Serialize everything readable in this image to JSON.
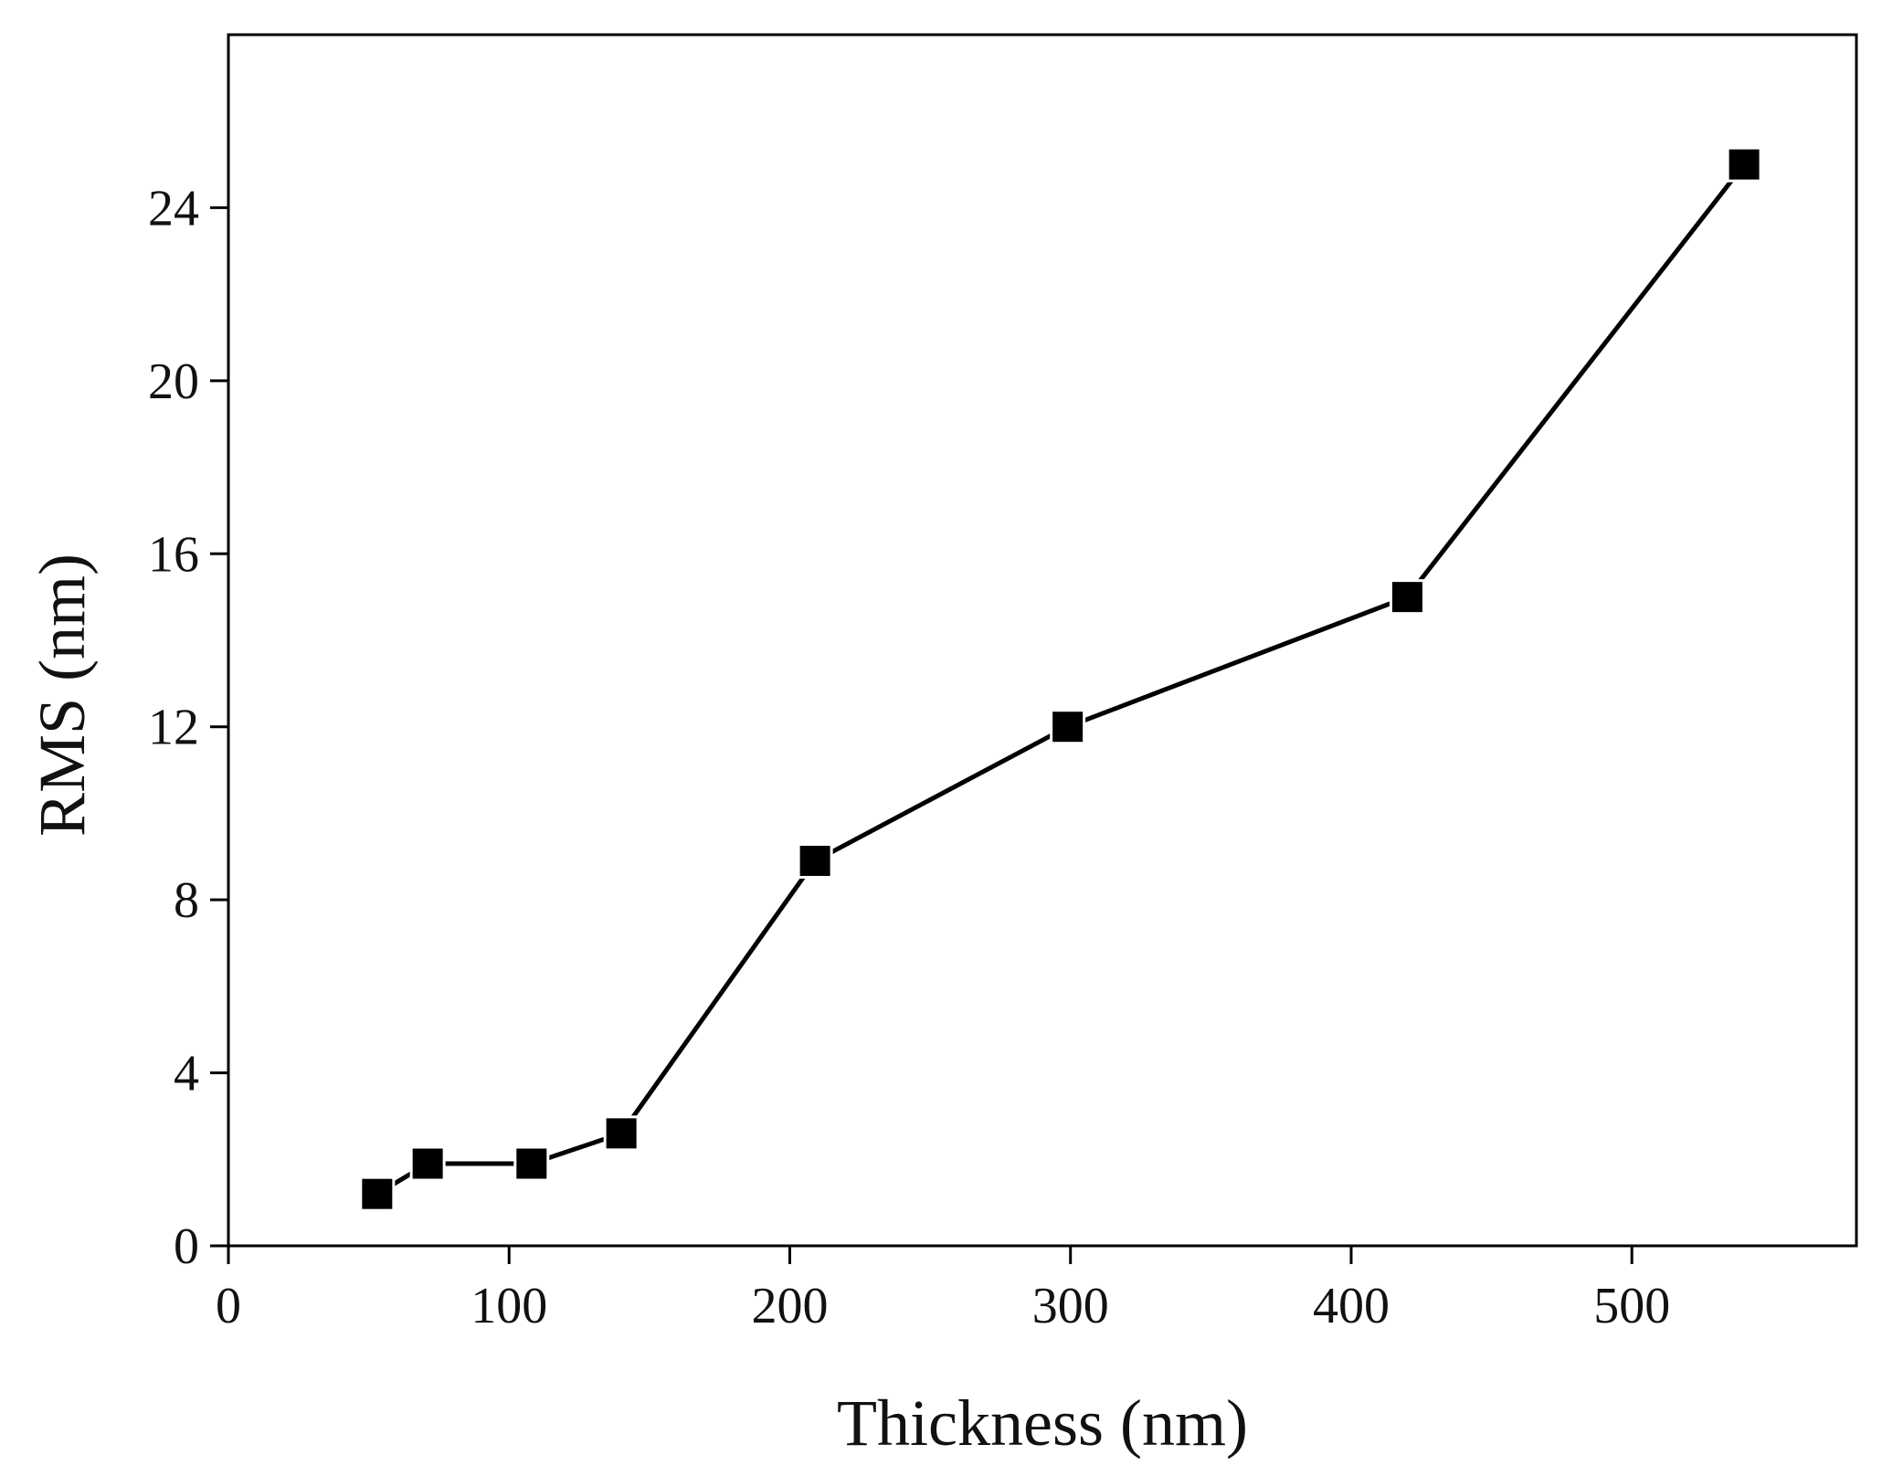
{
  "chart_data": {
    "type": "line",
    "title": "",
    "xlabel": "Thickness (nm)",
    "ylabel": "RMS (nm)",
    "xlim": [
      0,
      580
    ],
    "ylim": [
      0,
      28
    ],
    "x_ticks": [
      0,
      100,
      200,
      300,
      400,
      500
    ],
    "y_ticks": [
      0,
      4,
      8,
      12,
      16,
      20,
      24
    ],
    "x_tick_labels": [
      "0",
      "100",
      "200",
      "300",
      "400",
      "500"
    ],
    "y_tick_labels": [
      "0",
      "4",
      "8",
      "12",
      "16",
      "20",
      "24"
    ],
    "grid": false,
    "legend": "none",
    "marker": "square",
    "series": [
      {
        "name": "RMS",
        "x": [
          53,
          71,
          108,
          140,
          209,
          299,
          420,
          540
        ],
        "y": [
          1.2,
          1.9,
          1.9,
          2.6,
          8.9,
          12.0,
          15.0,
          25.0
        ]
      }
    ],
    "colors": {
      "line": "#000000",
      "marker": "#000000",
      "axis": "#000000"
    }
  }
}
